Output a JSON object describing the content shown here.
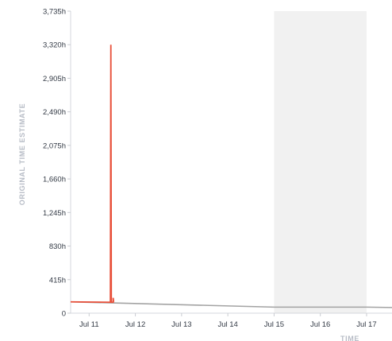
{
  "chart_data": {
    "type": "line",
    "title": "",
    "xlabel": "TIME",
    "ylabel": "ORIGINAL TIME ESTIMATE",
    "y_ticks": [
      "0",
      "415h",
      "830h",
      "1,245h",
      "1,660h",
      "2,075h",
      "2,490h",
      "2,905h",
      "3,320h",
      "3,735h"
    ],
    "ylim": [
      0,
      3735
    ],
    "x_ticks": [
      "Jul 11",
      "Jul 12",
      "Jul 13",
      "Jul 14",
      "Jul 15",
      "Jul 16",
      "Jul 17"
    ],
    "xlim": [
      10.6,
      17.55
    ],
    "highlight_range": [
      15.0,
      17.0
    ],
    "grid": false,
    "colors": {
      "series": "#e8503a",
      "guideline": "#a3a3a3",
      "highlight": "#f1f1f1"
    },
    "series": [
      {
        "values": [
          {
            "x": 10.6,
            "y": 140
          },
          {
            "x": 11.46,
            "y": 135
          },
          {
            "x": 11.47,
            "y": 3320
          },
          {
            "x": 11.48,
            "y": 135
          },
          {
            "x": 11.52,
            "y": 135
          },
          {
            "x": 11.52,
            "y": 190
          },
          {
            "x": 11.53,
            "y": 140
          }
        ]
      }
    ],
    "guideline": [
      {
        "x": 10.6,
        "y": 140
      },
      {
        "x": 15.0,
        "y": 75
      },
      {
        "x": 17.0,
        "y": 75
      },
      {
        "x": 17.55,
        "y": 70
      }
    ]
  }
}
